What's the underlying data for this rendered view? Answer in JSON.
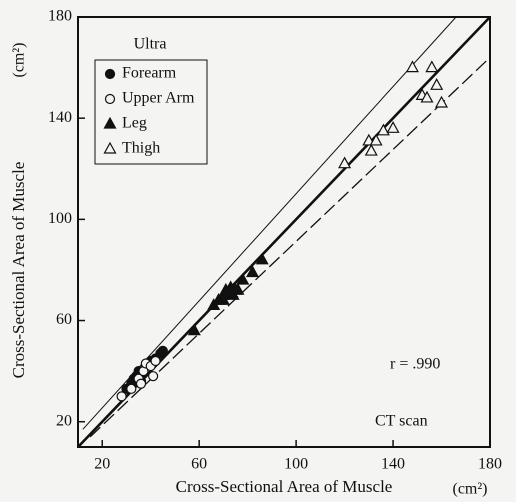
{
  "chart_data": {
    "type": "scatter",
    "xlabel": "Cross-Sectional Area of Muscle",
    "xunit": "(cm²)",
    "ylabel": "Cross-Sectional Area of Muscle",
    "yunit": "(cm²)",
    "legend_title": "Ultra",
    "legend": "upper left",
    "annotations": [
      "r = .990",
      "CT scan"
    ],
    "xlim": [
      10,
      180
    ],
    "ylim": [
      10,
      180
    ],
    "xticks": [
      20,
      60,
      100,
      140,
      180
    ],
    "yticks": [
      20,
      60,
      100,
      140,
      180
    ],
    "series": [
      {
        "name": "Forearm",
        "marker": "circle",
        "filled": true,
        "color": "#111111",
        "x": [
          30,
          32,
          33,
          34,
          35,
          36,
          37,
          38,
          40,
          42,
          44,
          45
        ],
        "values": [
          33,
          35,
          37,
          38,
          40,
          36,
          39,
          42,
          44,
          45,
          47,
          48
        ]
      },
      {
        "name": "Upper Arm",
        "marker": "circle",
        "filled": false,
        "color": "#111111",
        "x": [
          28,
          32,
          35,
          36,
          37,
          38,
          40,
          41,
          42
        ],
        "values": [
          30,
          33,
          37,
          35,
          40,
          43,
          42,
          38,
          44
        ]
      },
      {
        "name": "Leg",
        "marker": "triangle",
        "filled": true,
        "color": "#111111",
        "x": [
          58,
          66,
          68,
          70,
          70,
          71,
          72,
          73,
          74,
          75,
          76,
          78,
          82,
          86
        ],
        "values": [
          56,
          66,
          68,
          70,
          68,
          72,
          71,
          73,
          70,
          72,
          72,
          76,
          79,
          84
        ]
      },
      {
        "name": "Thigh",
        "marker": "triangle",
        "filled": false,
        "color": "#111111",
        "x": [
          120,
          130,
          131,
          133,
          136,
          140,
          148,
          152,
          154,
          156,
          158,
          160
        ],
        "values": [
          122,
          131,
          127,
          131,
          135,
          136,
          160,
          149,
          148,
          160,
          153,
          146
        ]
      }
    ],
    "lines": [
      {
        "x": [
          10,
          180
        ],
        "values": [
          10,
          180
        ],
        "width": 2.6,
        "dash": false
      },
      {
        "x": [
          12,
          166
        ],
        "values": [
          17,
          180
        ],
        "width": 1,
        "dash": false
      },
      {
        "x": [
          15,
          180
        ],
        "values": [
          14,
          164
        ],
        "width": 1.3,
        "dash": true
      }
    ]
  }
}
